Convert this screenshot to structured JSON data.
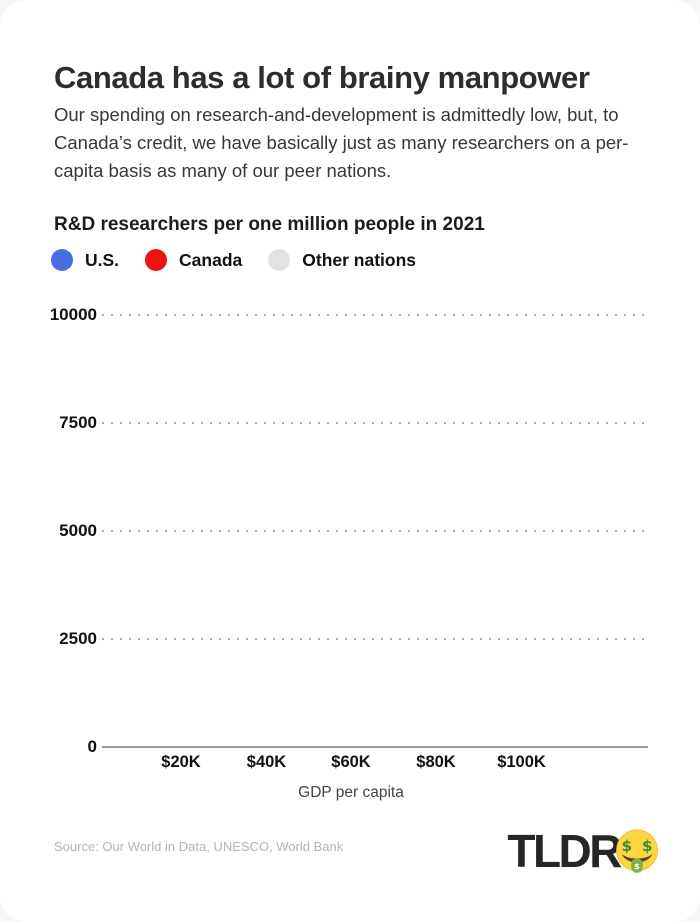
{
  "header": {
    "title": "Canada has a lot of brainy manpower",
    "subtitle": "Our spending on research-and-development is admittedly low, but, to\nCanada’s credit, we have basically just as many researchers on a per-\ncapita basis as many of our peer nations."
  },
  "chart_data": {
    "type": "scatter",
    "title": "R&D researchers per one million people in 2021",
    "xlabel": "GDP per capita",
    "ylim": [
      0,
      10000
    ],
    "yticks": [
      "10000",
      "7500",
      "5000",
      "2500",
      "0"
    ],
    "xticks": [
      "$20K",
      "$40K",
      "$60K",
      "$80K",
      "$100K"
    ],
    "grid": "horizontal-dotted",
    "legend_position": "top-left",
    "legend": [
      {
        "label": "U.S.",
        "color": "#4a6de5"
      },
      {
        "label": "Canada",
        "color": "#ef1414"
      },
      {
        "label": "Other nations",
        "color": "#e2e2e2"
      }
    ],
    "series": [
      {
        "name": "U.S.",
        "points": []
      },
      {
        "name": "Canada",
        "points": []
      },
      {
        "name": "Other nations",
        "points": []
      }
    ]
  },
  "footer": {
    "source": "Source: Our World in Data, UNESCO, World Bank",
    "logo_text": "TLDR",
    "logo_emoji_name": "money-mouth-face"
  }
}
